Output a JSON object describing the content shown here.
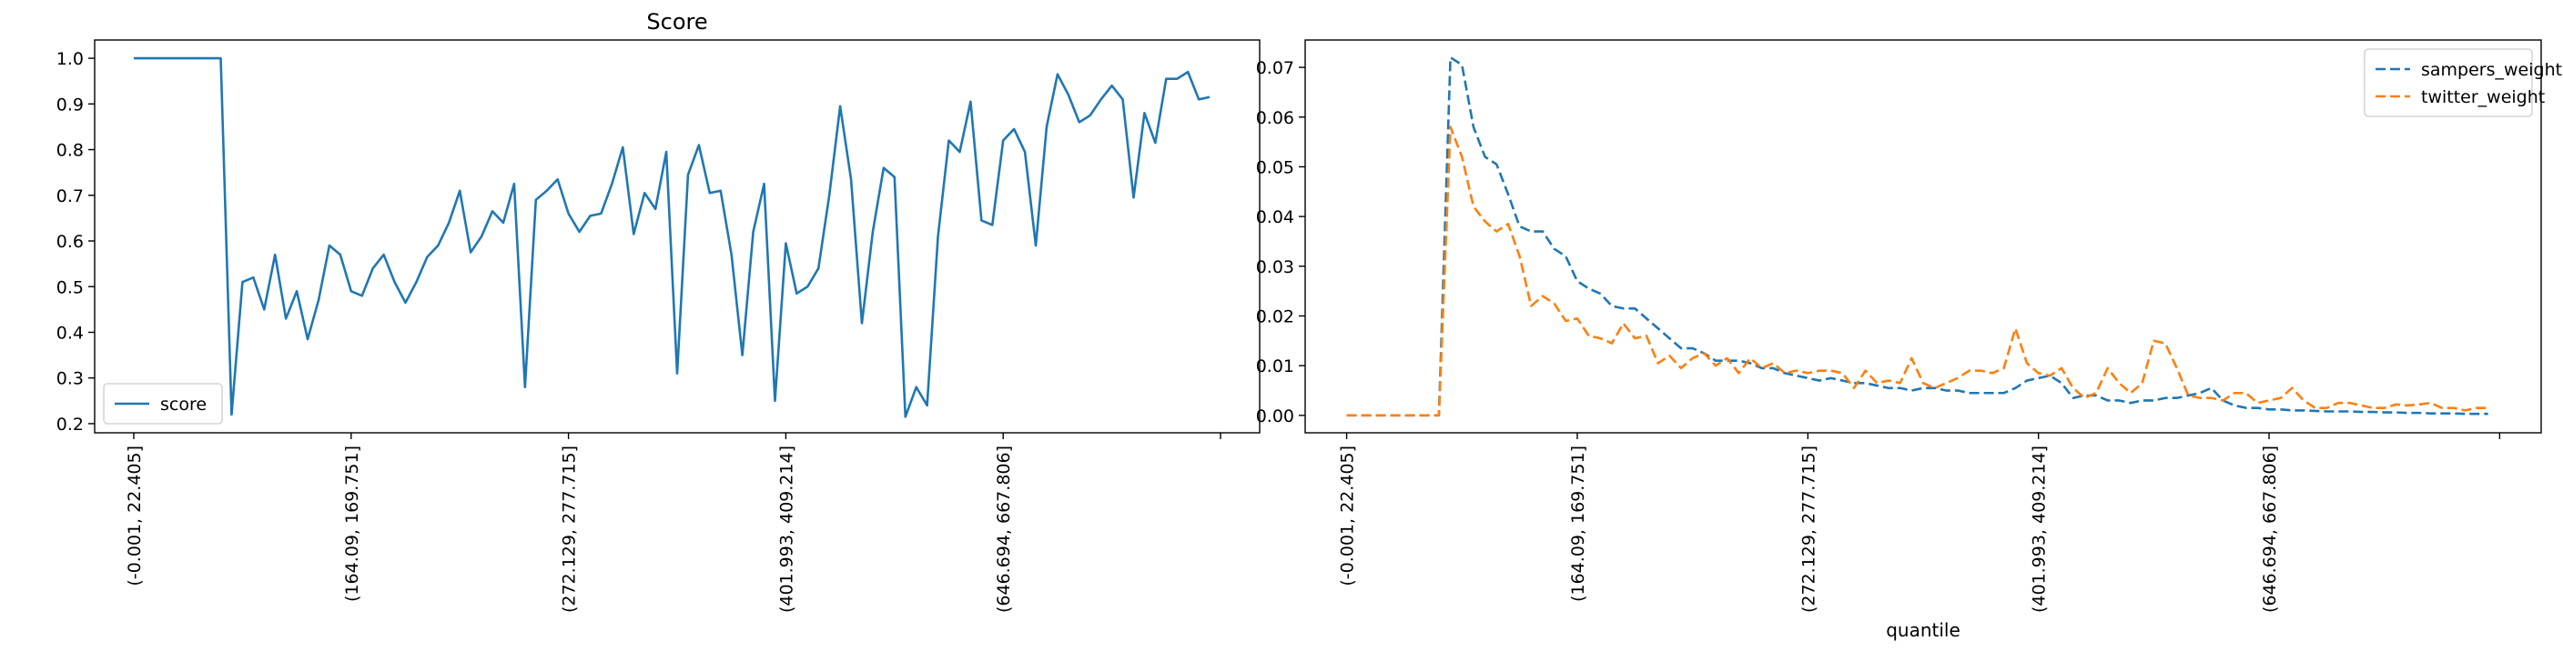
{
  "chart_data": [
    {
      "type": "line",
      "title": "Score",
      "xlabel": "",
      "ylabel": "",
      "ylim": [
        0.18,
        1.04
      ],
      "yticks": [
        "0.2",
        "0.3",
        "0.4",
        "0.5",
        "0.6",
        "0.7",
        "0.8",
        "0.9",
        "1.0"
      ],
      "ytick_values": [
        0.2,
        0.3,
        0.4,
        0.5,
        0.6,
        0.7,
        0.8,
        0.9,
        1.0
      ],
      "xtick_positions": [
        0,
        20,
        40,
        60,
        80,
        100
      ],
      "xtick_labels": [
        "(-0.001, 22.405]",
        "(164.09, 169.751]",
        "(272.129, 277.715]",
        "(401.993, 409.214]",
        "(646.694, 667.806]",
        ""
      ],
      "legend": {
        "location": "lower-left",
        "entries": [
          "score"
        ]
      },
      "grid": false,
      "series": [
        {
          "name": "score",
          "color": "#1f77b4",
          "style": "solid",
          "values": [
            1.0,
            1.0,
            1.0,
            1.0,
            1.0,
            1.0,
            1.0,
            1.0,
            1.0,
            0.22,
            0.51,
            0.52,
            0.45,
            0.57,
            0.43,
            0.49,
            0.385,
            0.47,
            0.59,
            0.57,
            0.49,
            0.48,
            0.54,
            0.57,
            0.51,
            0.465,
            0.51,
            0.565,
            0.59,
            0.64,
            0.71,
            0.575,
            0.61,
            0.665,
            0.64,
            0.725,
            0.28,
            0.69,
            0.71,
            0.735,
            0.66,
            0.62,
            0.655,
            0.66,
            0.725,
            0.805,
            0.615,
            0.705,
            0.67,
            0.795,
            0.31,
            0.745,
            0.81,
            0.705,
            0.71,
            0.57,
            0.35,
            0.62,
            0.725,
            0.25,
            0.595,
            0.485,
            0.5,
            0.54,
            0.7,
            0.895,
            0.735,
            0.42,
            0.62,
            0.76,
            0.74,
            0.215,
            0.28,
            0.24,
            0.61,
            0.82,
            0.795,
            0.905,
            0.645,
            0.635,
            0.82,
            0.845,
            0.795,
            0.59,
            0.85,
            0.965,
            0.92,
            0.86,
            0.875,
            0.91,
            0.94,
            0.91,
            0.695,
            0.88,
            0.815,
            0.955,
            0.955,
            0.97,
            0.91,
            0.915
          ]
        }
      ]
    },
    {
      "type": "line",
      "title": "",
      "xlabel": "quantile",
      "ylabel": "",
      "ylim": [
        -0.0035,
        0.0755
      ],
      "yticks": [
        "0.00",
        "0.01",
        "0.02",
        "0.03",
        "0.04",
        "0.05",
        "0.06",
        "0.07"
      ],
      "ytick_values": [
        0.0,
        0.01,
        0.02,
        0.03,
        0.04,
        0.05,
        0.06,
        0.07
      ],
      "xtick_positions": [
        0,
        20,
        40,
        60,
        80,
        100
      ],
      "xtick_labels": [
        "(-0.001, 22.405]",
        "(164.09, 169.751]",
        "(272.129, 277.715]",
        "(401.993, 409.214]",
        "(646.694, 667.806]",
        ""
      ],
      "legend": {
        "location": "top-right",
        "entries": [
          "sampers_weight",
          "twitter_weight"
        ]
      },
      "grid": false,
      "series": [
        {
          "name": "sampers_weight",
          "color": "#1f77b4",
          "style": "dashed",
          "values": [
            0,
            0,
            0,
            0,
            0,
            0,
            0,
            0,
            0,
            0.072,
            0.0705,
            0.058,
            0.052,
            0.0505,
            0.0445,
            0.038,
            0.037,
            0.037,
            0.0335,
            0.032,
            0.027,
            0.0255,
            0.0245,
            0.022,
            0.0215,
            0.0215,
            0.0195,
            0.0175,
            0.0155,
            0.0135,
            0.0135,
            0.0125,
            0.011,
            0.011,
            0.011,
            0.0105,
            0.0095,
            0.0095,
            0.0085,
            0.008,
            0.0075,
            0.007,
            0.0075,
            0.007,
            0.0065,
            0.0065,
            0.006,
            0.0055,
            0.0055,
            0.005,
            0.0055,
            0.0055,
            0.005,
            0.005,
            0.0045,
            0.0045,
            0.0045,
            0.0045,
            0.0055,
            0.007,
            0.0075,
            0.008,
            0.0065,
            0.0035,
            0.004,
            0.004,
            0.003,
            0.003,
            0.0025,
            0.003,
            0.003,
            0.0035,
            0.0035,
            0.004,
            0.0045,
            0.0055,
            0.003,
            0.002,
            0.0015,
            0.0015,
            0.0012,
            0.0012,
            0.001,
            0.001,
            0.0009,
            0.0008,
            0.0008,
            0.0008,
            0.0007,
            0.0007,
            0.0006,
            0.0006,
            0.0005,
            0.0005,
            0.0004,
            0.0004,
            0.0004,
            0.0003,
            0.0003,
            0.0003
          ]
        },
        {
          "name": "twitter_weight",
          "color": "#ff7f0e",
          "style": "dashed",
          "values": [
            0,
            0,
            0,
            0,
            0,
            0,
            0,
            0,
            0,
            0.058,
            0.052,
            0.042,
            0.039,
            0.037,
            0.0385,
            0.032,
            0.022,
            0.024,
            0.0225,
            0.019,
            0.0195,
            0.016,
            0.0155,
            0.0145,
            0.0185,
            0.0155,
            0.016,
            0.0105,
            0.012,
            0.0095,
            0.0115,
            0.0125,
            0.01,
            0.0115,
            0.0085,
            0.0115,
            0.0095,
            0.0105,
            0.0085,
            0.009,
            0.0085,
            0.009,
            0.009,
            0.0085,
            0.0055,
            0.009,
            0.0065,
            0.007,
            0.0065,
            0.0115,
            0.0065,
            0.0055,
            0.0065,
            0.0075,
            0.009,
            0.009,
            0.0085,
            0.0095,
            0.0175,
            0.0105,
            0.0085,
            0.008,
            0.0095,
            0.0055,
            0.0035,
            0.0045,
            0.0095,
            0.0065,
            0.0045,
            0.0065,
            0.015,
            0.0145,
            0.0095,
            0.004,
            0.0035,
            0.0035,
            0.003,
            0.0045,
            0.0045,
            0.0025,
            0.003,
            0.0035,
            0.0055,
            0.003,
            0.0015,
            0.0015,
            0.0025,
            0.0025,
            0.002,
            0.0015,
            0.0015,
            0.0022,
            0.002,
            0.0022,
            0.0025,
            0.0015,
            0.0015,
            0.001,
            0.0015,
            0.0015
          ]
        }
      ]
    }
  ]
}
